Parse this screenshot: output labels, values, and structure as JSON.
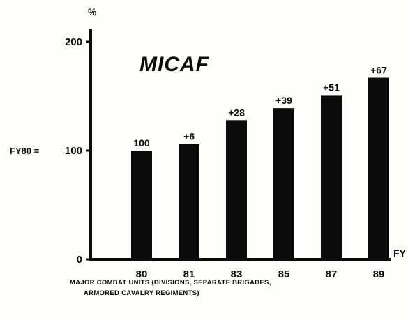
{
  "chart_data": {
    "type": "bar",
    "title": "MICAF",
    "ylabel": "%",
    "xlabel": "FY",
    "categories": [
      "80",
      "81",
      "83",
      "85",
      "87",
      "89"
    ],
    "values": [
      100,
      106,
      128,
      139,
      151,
      167
    ],
    "data_labels": [
      "100",
      "+6",
      "+28",
      "+39",
      "+51",
      "+67"
    ],
    "y_ticks": [
      "0",
      "100",
      "200"
    ],
    "ylim": [
      0,
      200
    ],
    "reference_label": "FY80 =",
    "grid": false,
    "bar_color": "#0b0b0b",
    "footnote": [
      "MAJOR COMBAT UNITS (DIVISIONS, SEPARATE BRIGADES,",
      "ARMORED CAVALRY REGIMENTS)"
    ]
  }
}
